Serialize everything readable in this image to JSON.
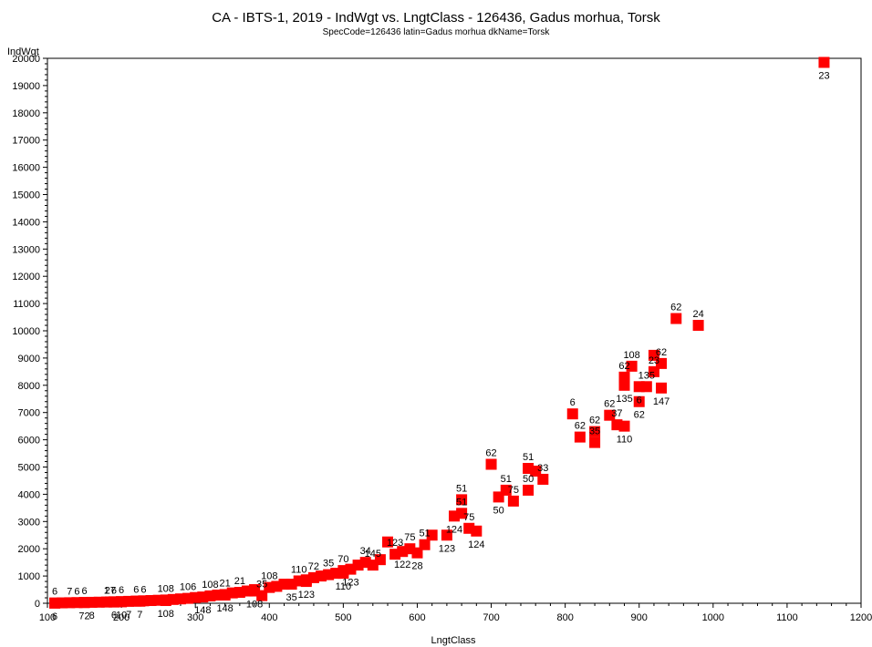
{
  "chart_data": {
    "type": "scatter",
    "title": "CA - IBTS-1, 2019 - IndWgt vs. LngtClass - 126436, Gadus morhua, Torsk",
    "subtitle": "SpecCode=126436 latin=Gadus morhua dkName=Torsk",
    "xlabel": "LngtClass",
    "ylabel": "IndWgt",
    "xlim": [
      100,
      1200
    ],
    "ylim": [
      0,
      20000
    ],
    "xticks": [
      100,
      200,
      300,
      400,
      500,
      600,
      700,
      800,
      900,
      1000,
      1100,
      1200
    ],
    "yticks": [
      0,
      1000,
      2000,
      3000,
      4000,
      5000,
      6000,
      7000,
      8000,
      9000,
      10000,
      11000,
      12000,
      13000,
      14000,
      15000,
      16000,
      17000,
      18000,
      19000,
      20000
    ],
    "marker_color": "#ff0000",
    "grid": false,
    "legend": "none",
    "points": [
      {
        "x": 110,
        "y": 10,
        "label": "6",
        "pos": "above"
      },
      {
        "x": 110,
        "y": 5,
        "label": "6",
        "pos": "below"
      },
      {
        "x": 120,
        "y": 15,
        "label": "",
        "pos": "above"
      },
      {
        "x": 130,
        "y": 20,
        "label": "7",
        "pos": "above"
      },
      {
        "x": 140,
        "y": 25,
        "label": "6",
        "pos": "above"
      },
      {
        "x": 150,
        "y": 30,
        "label": "6",
        "pos": "above"
      },
      {
        "x": 150,
        "y": 25,
        "label": "72",
        "pos": "below"
      },
      {
        "x": 160,
        "y": 35,
        "label": "8",
        "pos": "below"
      },
      {
        "x": 170,
        "y": 40,
        "label": "",
        "pos": "above"
      },
      {
        "x": 180,
        "y": 45,
        "label": "1",
        "pos": "above"
      },
      {
        "x": 185,
        "y": 50,
        "label": "27",
        "pos": "above"
      },
      {
        "x": 190,
        "y": 55,
        "label": "6",
        "pos": "above"
      },
      {
        "x": 190,
        "y": 45,
        "label": "6",
        "pos": "below"
      },
      {
        "x": 200,
        "y": 60,
        "label": "6",
        "pos": "above"
      },
      {
        "x": 200,
        "y": 55,
        "label": "10",
        "pos": "below"
      },
      {
        "x": 210,
        "y": 70,
        "label": "7",
        "pos": "below"
      },
      {
        "x": 220,
        "y": 80,
        "label": "6",
        "pos": "above"
      },
      {
        "x": 225,
        "y": 75,
        "label": "7",
        "pos": "below"
      },
      {
        "x": 230,
        "y": 90,
        "label": "6",
        "pos": "above"
      },
      {
        "x": 240,
        "y": 100,
        "label": "",
        "pos": "above"
      },
      {
        "x": 250,
        "y": 110,
        "label": "",
        "pos": "above"
      },
      {
        "x": 260,
        "y": 120,
        "label": "108",
        "pos": "above"
      },
      {
        "x": 260,
        "y": 100,
        "label": "108",
        "pos": "below"
      },
      {
        "x": 270,
        "y": 140,
        "label": "",
        "pos": "above"
      },
      {
        "x": 280,
        "y": 160,
        "label": "",
        "pos": "above"
      },
      {
        "x": 290,
        "y": 180,
        "label": "106",
        "pos": "above"
      },
      {
        "x": 300,
        "y": 210,
        "label": "",
        "pos": "above"
      },
      {
        "x": 310,
        "y": 230,
        "label": "148",
        "pos": "below"
      },
      {
        "x": 320,
        "y": 270,
        "label": "108",
        "pos": "above"
      },
      {
        "x": 330,
        "y": 300,
        "label": "",
        "pos": "above"
      },
      {
        "x": 340,
        "y": 320,
        "label": "21",
        "pos": "above"
      },
      {
        "x": 340,
        "y": 300,
        "label": "148",
        "pos": "below"
      },
      {
        "x": 350,
        "y": 380,
        "label": "",
        "pos": "above"
      },
      {
        "x": 360,
        "y": 400,
        "label": "21",
        "pos": "above"
      },
      {
        "x": 370,
        "y": 450,
        "label": "",
        "pos": "above"
      },
      {
        "x": 380,
        "y": 500,
        "label": "",
        "pos": "above"
      },
      {
        "x": 380,
        "y": 450,
        "label": "108",
        "pos": "below"
      },
      {
        "x": 390,
        "y": 280,
        "label": "35",
        "pos": "above"
      },
      {
        "x": 400,
        "y": 580,
        "label": "108",
        "pos": "above"
      },
      {
        "x": 410,
        "y": 620,
        "label": "",
        "pos": "above"
      },
      {
        "x": 420,
        "y": 700,
        "label": "",
        "pos": "above"
      },
      {
        "x": 430,
        "y": 700,
        "label": "35",
        "pos": "below"
      },
      {
        "x": 440,
        "y": 820,
        "label": "110",
        "pos": "above"
      },
      {
        "x": 450,
        "y": 860,
        "label": "",
        "pos": "above"
      },
      {
        "x": 450,
        "y": 800,
        "label": "123",
        "pos": "below"
      },
      {
        "x": 460,
        "y": 940,
        "label": "72",
        "pos": "above"
      },
      {
        "x": 470,
        "y": 1000,
        "label": "",
        "pos": "above"
      },
      {
        "x": 480,
        "y": 1050,
        "label": "35",
        "pos": "above"
      },
      {
        "x": 490,
        "y": 1100,
        "label": "",
        "pos": "above"
      },
      {
        "x": 500,
        "y": 1200,
        "label": "70",
        "pos": "above"
      },
      {
        "x": 500,
        "y": 1100,
        "label": "110",
        "pos": "below"
      },
      {
        "x": 510,
        "y": 1250,
        "label": "123",
        "pos": "below"
      },
      {
        "x": 520,
        "y": 1400,
        "label": "",
        "pos": "above"
      },
      {
        "x": 530,
        "y": 1500,
        "label": "34",
        "pos": "above"
      },
      {
        "x": 540,
        "y": 1400,
        "label": "145",
        "pos": "above"
      },
      {
        "x": 550,
        "y": 1600,
        "label": "",
        "pos": "above"
      },
      {
        "x": 560,
        "y": 2250,
        "label": "",
        "pos": "above"
      },
      {
        "x": 570,
        "y": 1800,
        "label": "123",
        "pos": "above"
      },
      {
        "x": 580,
        "y": 1900,
        "label": "122",
        "pos": "below"
      },
      {
        "x": 590,
        "y": 2000,
        "label": "75",
        "pos": "above"
      },
      {
        "x": 600,
        "y": 1850,
        "label": "28",
        "pos": "below"
      },
      {
        "x": 610,
        "y": 2150,
        "label": "51",
        "pos": "above"
      },
      {
        "x": 620,
        "y": 2500,
        "label": "",
        "pos": "above"
      },
      {
        "x": 640,
        "y": 2500,
        "label": "123",
        "pos": "below"
      },
      {
        "x": 650,
        "y": 3200,
        "label": "124",
        "pos": "below"
      },
      {
        "x": 660,
        "y": 3800,
        "label": "51",
        "pos": "above"
      },
      {
        "x": 660,
        "y": 3300,
        "label": "51",
        "pos": "above"
      },
      {
        "x": 670,
        "y": 2750,
        "label": "75",
        "pos": "above"
      },
      {
        "x": 680,
        "y": 2650,
        "label": "124",
        "pos": "below"
      },
      {
        "x": 700,
        "y": 5100,
        "label": "62",
        "pos": "above"
      },
      {
        "x": 710,
        "y": 3900,
        "label": "50",
        "pos": "below"
      },
      {
        "x": 720,
        "y": 4150,
        "label": "51",
        "pos": "above"
      },
      {
        "x": 730,
        "y": 3750,
        "label": "75",
        "pos": "above"
      },
      {
        "x": 750,
        "y": 4950,
        "label": "51",
        "pos": "above"
      },
      {
        "x": 750,
        "y": 4150,
        "label": "50",
        "pos": "above"
      },
      {
        "x": 760,
        "y": 4850,
        "label": "",
        "pos": "above"
      },
      {
        "x": 770,
        "y": 4550,
        "label": "33",
        "pos": "above"
      },
      {
        "x": 810,
        "y": 6950,
        "label": "6",
        "pos": "above"
      },
      {
        "x": 820,
        "y": 6100,
        "label": "62",
        "pos": "above"
      },
      {
        "x": 840,
        "y": 6300,
        "label": "62",
        "pos": "above"
      },
      {
        "x": 840,
        "y": 5900,
        "label": "35",
        "pos": "above"
      },
      {
        "x": 860,
        "y": 6900,
        "label": "62",
        "pos": "above"
      },
      {
        "x": 870,
        "y": 6550,
        "label": "37",
        "pos": "above"
      },
      {
        "x": 880,
        "y": 6500,
        "label": "110",
        "pos": "below"
      },
      {
        "x": 880,
        "y": 8300,
        "label": "62",
        "pos": "above"
      },
      {
        "x": 880,
        "y": 8000,
        "label": "135",
        "pos": "below"
      },
      {
        "x": 890,
        "y": 8700,
        "label": "108",
        "pos": "above"
      },
      {
        "x": 900,
        "y": 7950,
        "label": "6",
        "pos": "below"
      },
      {
        "x": 900,
        "y": 7400,
        "label": "62",
        "pos": "below"
      },
      {
        "x": 910,
        "y": 7950,
        "label": "135",
        "pos": "above"
      },
      {
        "x": 920,
        "y": 9100,
        "label": "",
        "pos": "above"
      },
      {
        "x": 920,
        "y": 8500,
        "label": "23",
        "pos": "above"
      },
      {
        "x": 930,
        "y": 8800,
        "label": "62",
        "pos": "above"
      },
      {
        "x": 930,
        "y": 7900,
        "label": "147",
        "pos": "below"
      },
      {
        "x": 950,
        "y": 10450,
        "label": "62",
        "pos": "above"
      },
      {
        "x": 980,
        "y": 10200,
        "label": "24",
        "pos": "above"
      },
      {
        "x": 1150,
        "y": 19850,
        "label": "23",
        "pos": "below"
      }
    ]
  }
}
